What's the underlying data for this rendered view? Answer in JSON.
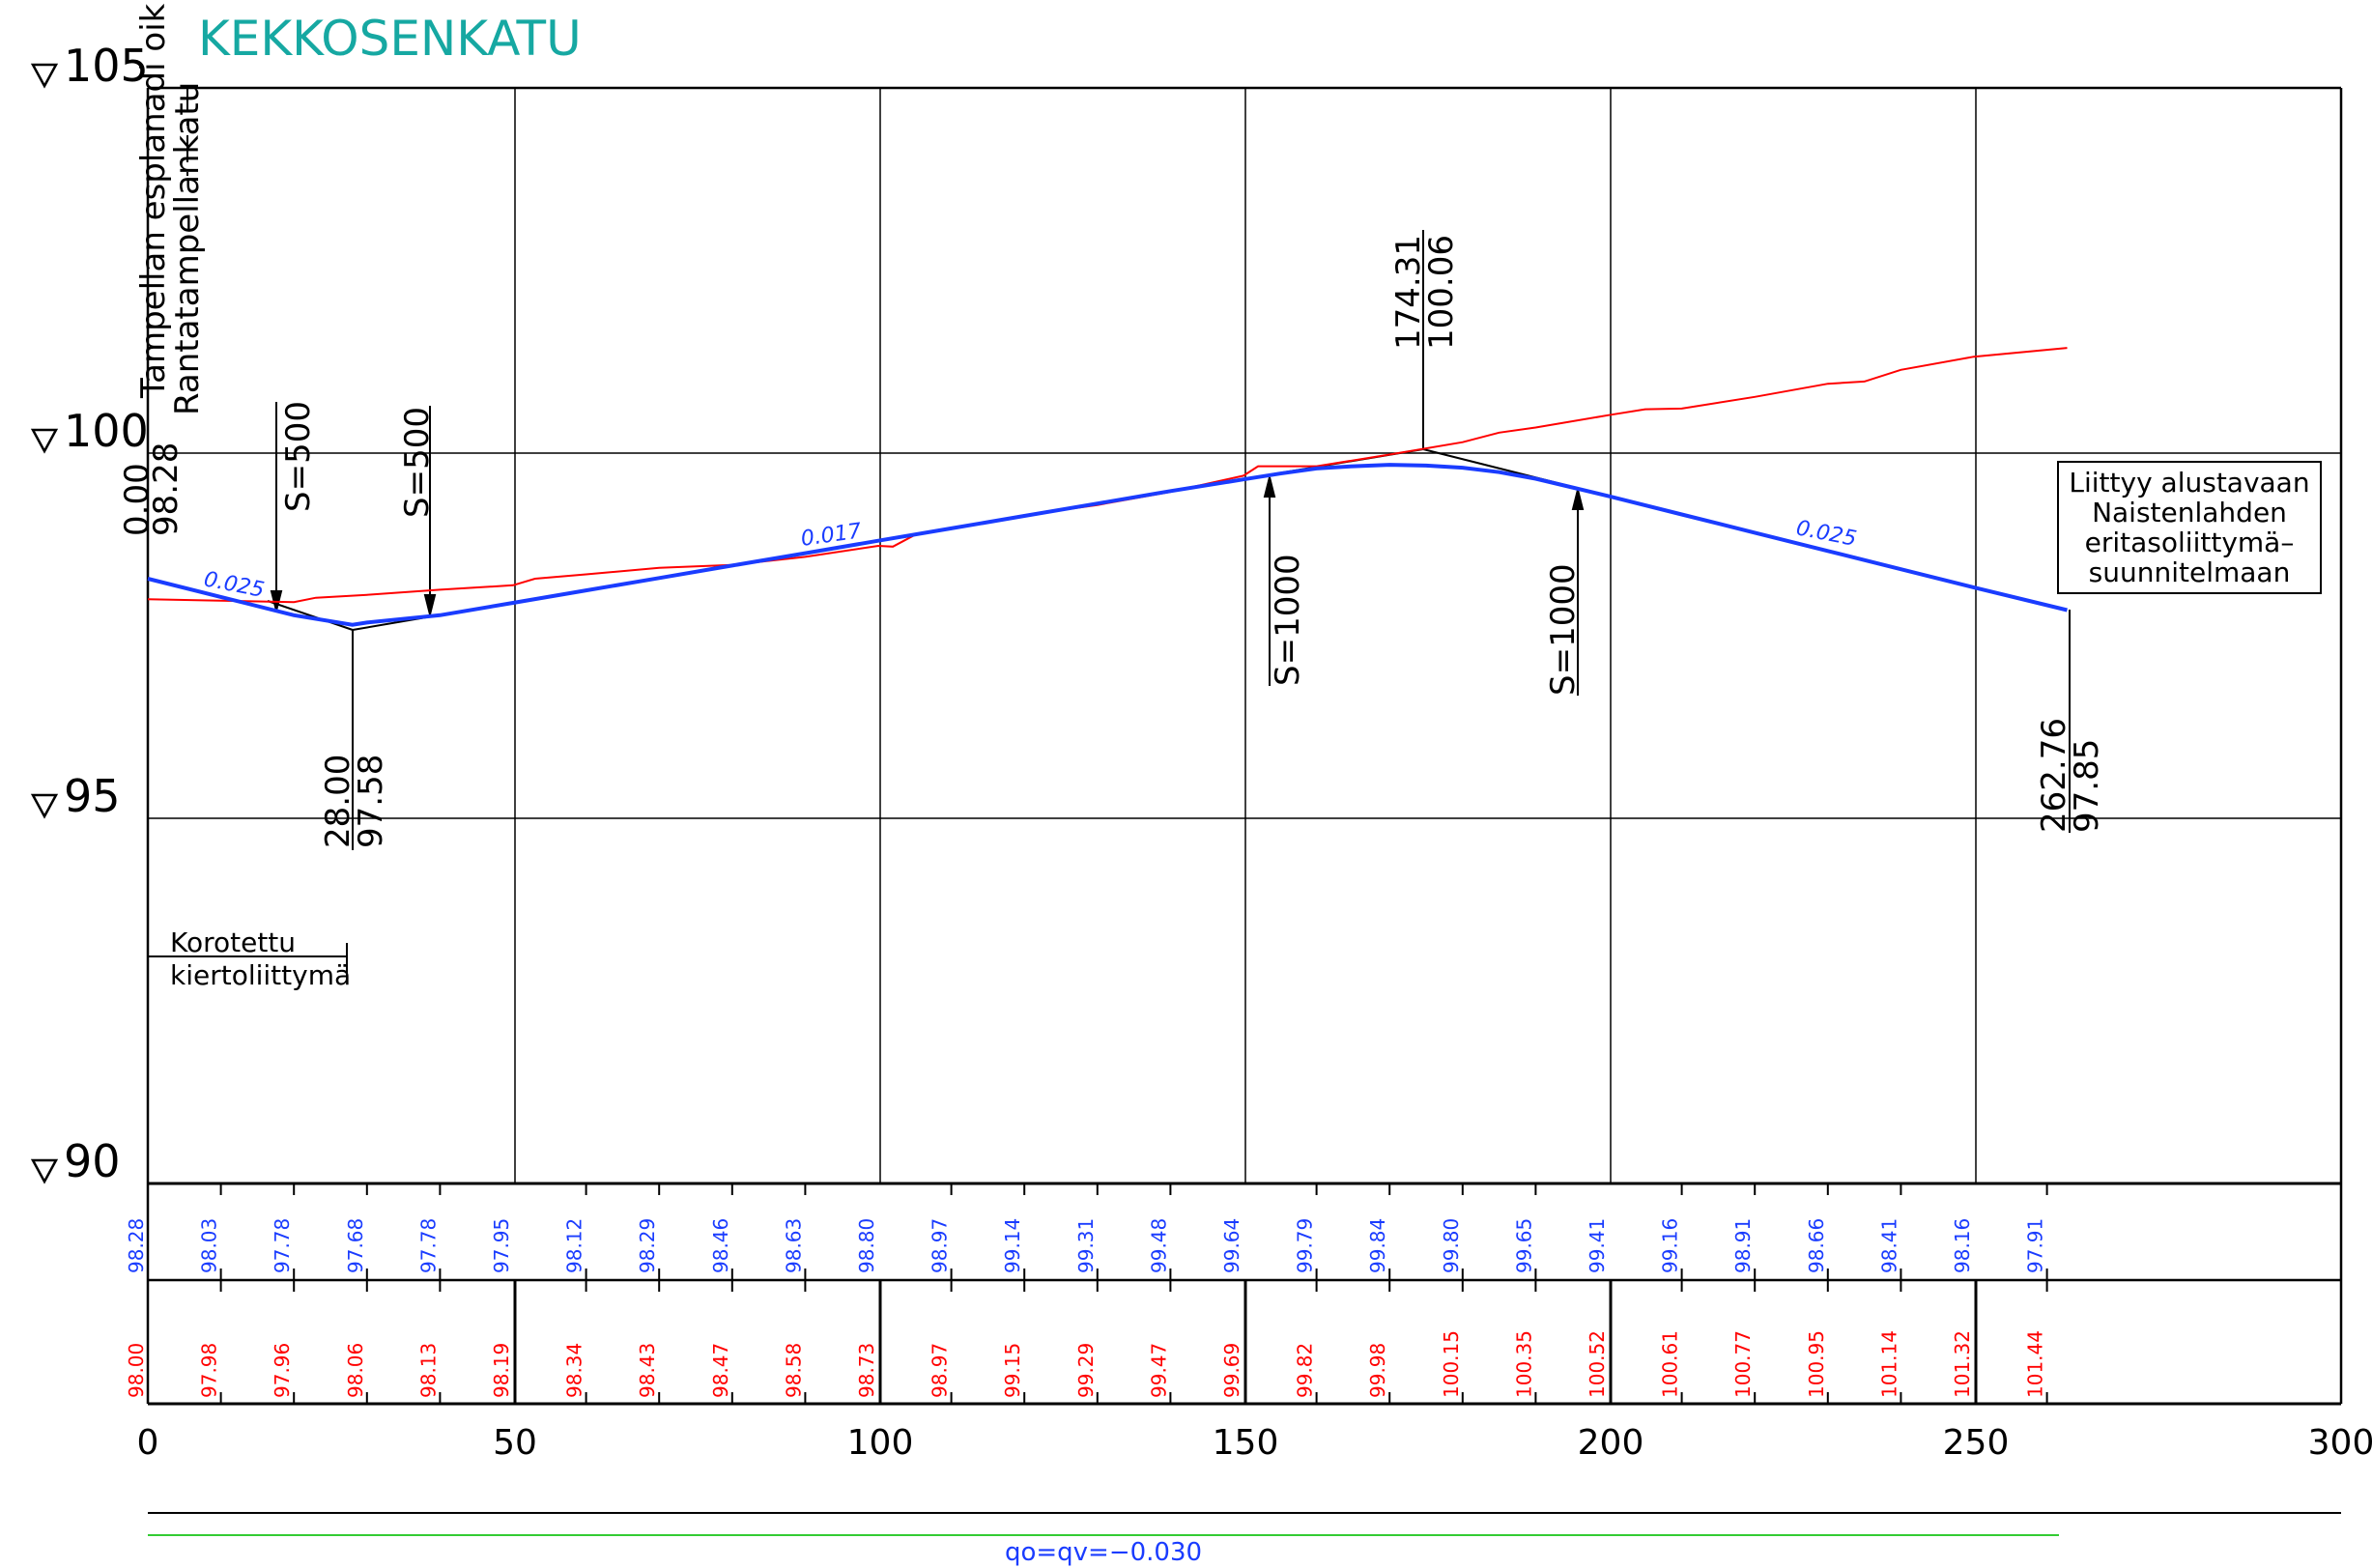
{
  "title": "KEKKOSENKATU",
  "chart_data": {
    "type": "line",
    "x_ticks": [
      "0",
      "50",
      "100",
      "150",
      "200",
      "250",
      "300"
    ],
    "xlim": [
      0,
      300
    ],
    "ylim": [
      90,
      105
    ],
    "level_labels": [
      "105",
      "100",
      "95",
      "90"
    ],
    "stations": [
      0,
      10,
      20,
      30,
      40,
      50,
      60,
      70,
      80,
      90,
      100,
      110,
      120,
      130,
      140,
      150,
      160,
      170,
      180,
      190,
      200,
      210,
      220,
      230,
      240,
      250,
      260
    ],
    "design_row": [
      "98.28",
      "98.03",
      "97.78",
      "97.68",
      "97.78",
      "97.95",
      "98.12",
      "98.29",
      "98.46",
      "98.63",
      "98.80",
      "98.97",
      "99.14",
      "99.31",
      "99.48",
      "99.64",
      "99.79",
      "99.84",
      "99.80",
      "99.65",
      "99.41",
      "99.16",
      "98.91",
      "98.66",
      "98.41",
      "98.16",
      "97.91"
    ],
    "ground_row": [
      "98.00",
      "97.98",
      "97.96",
      "98.06",
      "98.13",
      "98.19",
      "98.34",
      "98.43",
      "98.47",
      "98.58",
      "98.73",
      "98.97",
      "99.15",
      "99.29",
      "99.47",
      "99.69",
      "99.82",
      "99.98",
      "100.15",
      "100.35",
      "100.52",
      "100.61",
      "100.77",
      "100.95",
      "101.14",
      "101.32",
      "101.44"
    ],
    "series": [
      {
        "color": "#1a3cff",
        "points": [
          [
            0,
            98.28
          ],
          [
            10,
            98.03
          ],
          [
            20,
            97.78
          ],
          [
            28,
            97.65
          ],
          [
            30,
            97.68
          ],
          [
            40,
            97.78
          ],
          [
            50,
            97.95
          ],
          [
            60,
            98.12
          ],
          [
            70,
            98.29
          ],
          [
            80,
            98.46
          ],
          [
            90,
            98.63
          ],
          [
            100,
            98.8
          ],
          [
            110,
            98.97
          ],
          [
            120,
            99.14
          ],
          [
            130,
            99.31
          ],
          [
            140,
            99.48
          ],
          [
            150,
            99.64
          ],
          [
            155,
            99.72
          ],
          [
            160,
            99.79
          ],
          [
            165,
            99.82
          ],
          [
            170,
            99.84
          ],
          [
            175,
            99.83
          ],
          [
            180,
            99.8
          ],
          [
            185,
            99.74
          ],
          [
            190,
            99.65
          ],
          [
            195,
            99.53
          ],
          [
            200,
            99.41
          ],
          [
            210,
            99.16
          ],
          [
            220,
            98.91
          ],
          [
            230,
            98.66
          ],
          [
            240,
            98.41
          ],
          [
            250,
            98.16
          ],
          [
            262.76,
            97.85
          ]
        ]
      },
      {
        "color": "#ff0000",
        "points": [
          [
            0,
            98.0
          ],
          [
            10,
            97.98
          ],
          [
            20,
            97.96
          ],
          [
            23,
            98.02
          ],
          [
            30,
            98.06
          ],
          [
            40,
            98.13
          ],
          [
            50,
            98.19
          ],
          [
            53,
            98.28
          ],
          [
            60,
            98.34
          ],
          [
            70,
            98.43
          ],
          [
            80,
            98.47
          ],
          [
            90,
            98.58
          ],
          [
            100,
            98.73
          ],
          [
            102,
            98.72
          ],
          [
            105,
            98.88
          ],
          [
            110,
            98.97
          ],
          [
            120,
            99.15
          ],
          [
            130,
            99.29
          ],
          [
            140,
            99.47
          ],
          [
            150,
            99.69
          ],
          [
            152,
            99.82
          ],
          [
            155,
            99.82
          ],
          [
            160,
            99.82
          ],
          [
            170,
            99.98
          ],
          [
            180,
            100.15
          ],
          [
            185,
            100.28
          ],
          [
            190,
            100.35
          ],
          [
            200,
            100.52
          ],
          [
            205,
            100.6
          ],
          [
            210,
            100.61
          ],
          [
            220,
            100.77
          ],
          [
            230,
            100.95
          ],
          [
            235,
            100.98
          ],
          [
            240,
            101.14
          ],
          [
            250,
            101.32
          ],
          [
            262.76,
            101.44
          ]
        ]
      }
    ],
    "tangent_points": [
      [
        0,
        98.28
      ],
      [
        28,
        97.58
      ],
      [
        174.31,
        100.06
      ],
      [
        262.76,
        97.85
      ]
    ],
    "grade_labels": [
      "0.025",
      "0.017",
      "0.025"
    ],
    "curve_labels": [
      "S=500",
      "S=500",
      "S=1000",
      "S=1000"
    ],
    "vertex_labels": [
      {
        "station": "0.00",
        "height": "98.28"
      },
      {
        "station": "28.00",
        "height": "97.58"
      },
      {
        "station": "174.31",
        "height": "100.06"
      },
      {
        "station": "262.76",
        "height": "97.85"
      }
    ]
  },
  "street_labels": [
    "Tampellan esplanadi oik",
    "Rantatampellankatu"
  ],
  "roundabout_label": [
    "Korotettu",
    "kiertoliittymä"
  ],
  "note": [
    "Liittyy  alustavaan",
    "Naistenlahden",
    "eritasoliittymä–",
    "suunnitelmaan"
  ],
  "crossfall": "qo=qv=−0.030"
}
